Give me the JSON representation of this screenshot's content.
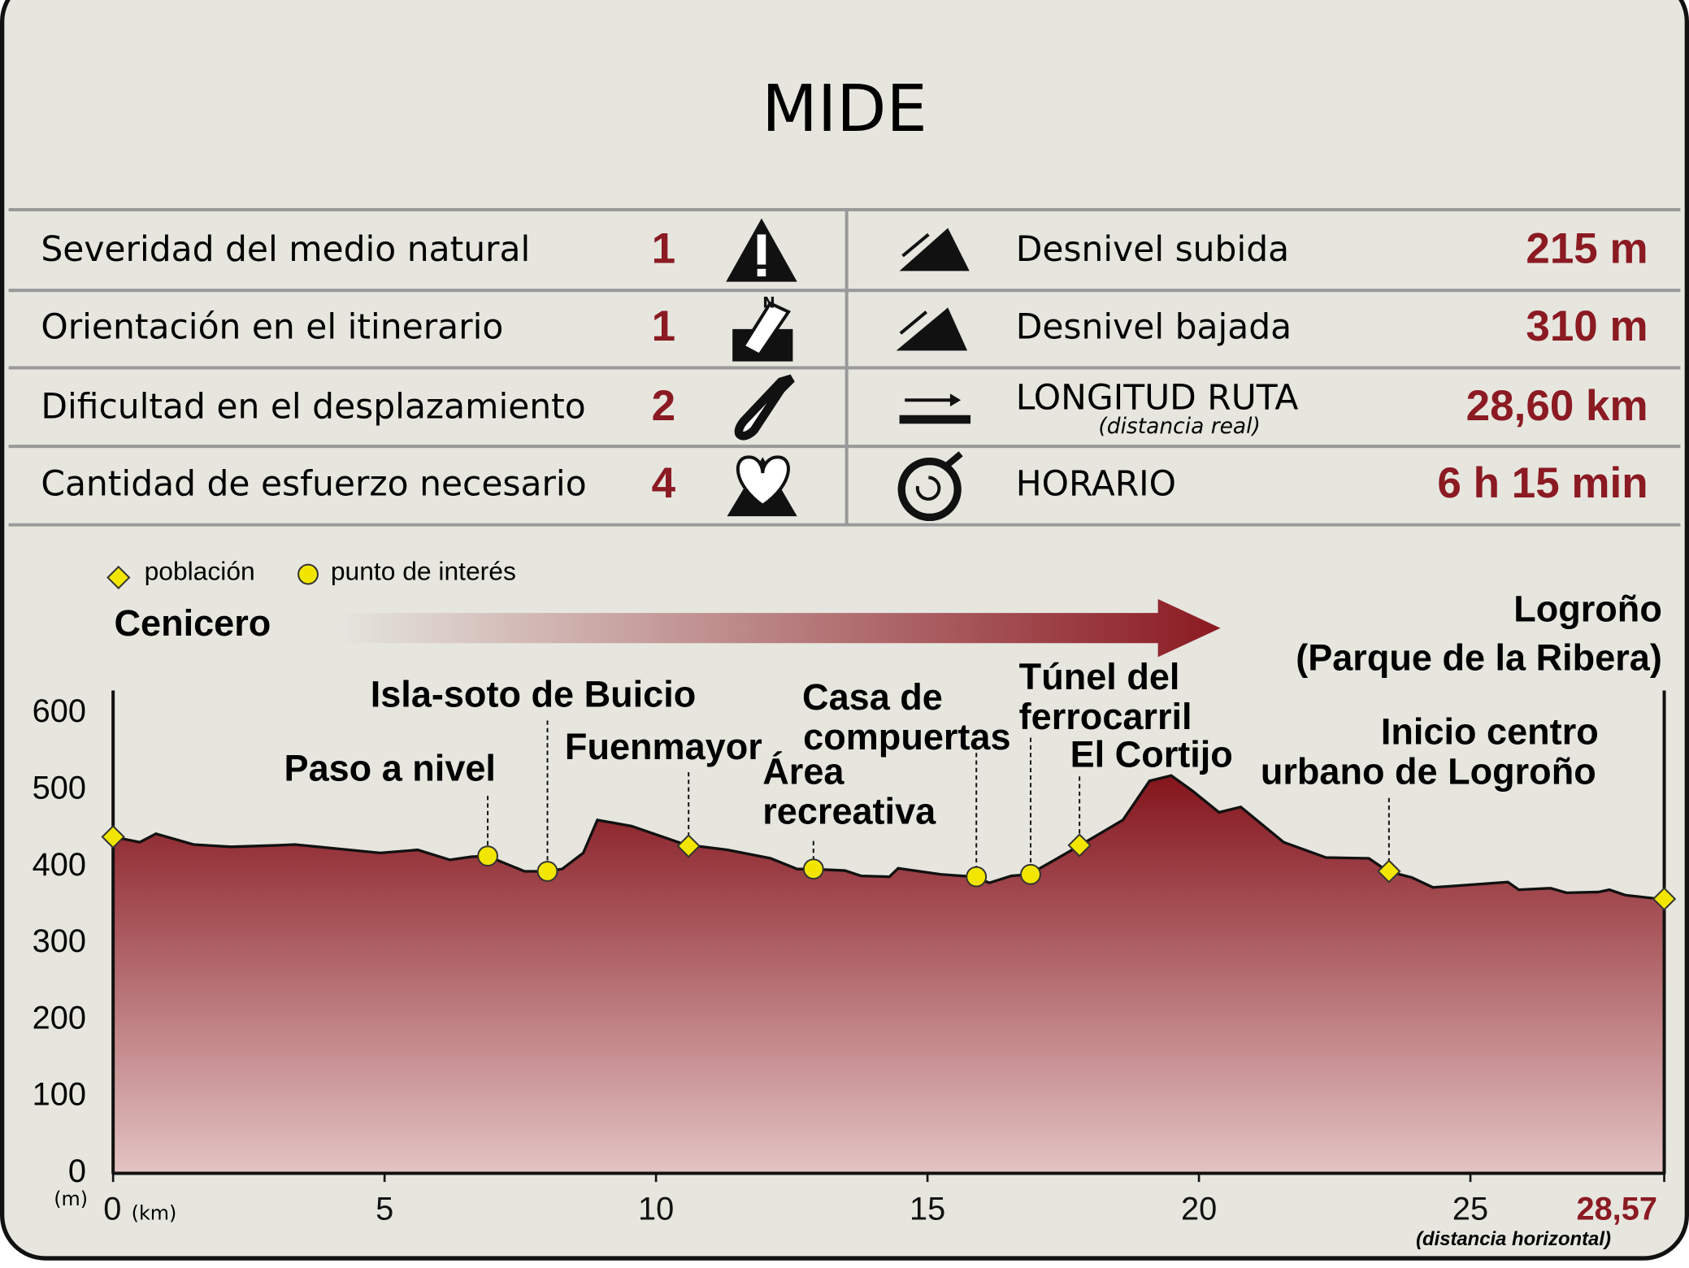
{
  "title": "MIDE",
  "mide": {
    "left": [
      {
        "label": "Severidad del medio natural",
        "value": 1
      },
      {
        "label": "Orientación en el itinerario",
        "value": 1
      },
      {
        "label": "Dificultad en el desplazamiento",
        "value": 2
      },
      {
        "label": "Cantidad de esfuerzo necesario",
        "value": 4
      }
    ],
    "right": [
      {
        "label": "Desnivel subida",
        "value": "215 m"
      },
      {
        "label": "Desnivel bajada",
        "value": "310 m"
      },
      {
        "label": "LONGITUD RUTA",
        "note": "(distancia real)",
        "value": "28,60 km"
      },
      {
        "label": "HORARIO",
        "value": "6 h 15 min"
      }
    ]
  },
  "chart_data": {
    "type": "area",
    "start": "Cenicero",
    "end": [
      "Logroño",
      "(Parque de la Ribera)"
    ],
    "x_unit": "(km)",
    "y_unit": "(m)",
    "x_note": "(distancia horizontal)",
    "xlim": [
      0,
      28.57
    ],
    "ylim": [
      0,
      630
    ],
    "xticks": [
      0,
      5,
      10,
      15,
      20,
      25,
      {
        "value": 28.57,
        "label": "28,57"
      }
    ],
    "yticks": [
      0,
      100,
      200,
      300,
      400,
      500,
      600
    ],
    "series": [
      {
        "color": "#8b1a22",
        "x": [
          0,
          0.49,
          0.79,
          1.48,
          2.17,
          3.05,
          3.35,
          4.92,
          5.61,
          6.2,
          6.6,
          6.89,
          7.58,
          7.97,
          8.27,
          8.66,
          8.92,
          9.55,
          10.53,
          11.32,
          12.11,
          12.6,
          12.89,
          13.48,
          13.78,
          14.3,
          14.46,
          15.25,
          15.85,
          16.14,
          16.54,
          16.87,
          17.32,
          17.81,
          18.6,
          19.09,
          19.49,
          19.88,
          20.37,
          20.77,
          21.56,
          22.34,
          23.13,
          23.48,
          23.92,
          24.31,
          25.69,
          25.89,
          26.48,
          26.77,
          27.36,
          27.56,
          27.85,
          28.35,
          28.57
        ],
        "values": [
          439,
          432,
          443,
          429,
          426,
          428,
          429,
          418,
          422,
          409,
          413,
          414,
          394,
          394,
          397,
          418,
          461,
          453,
          429,
          422,
          411,
          397,
          397,
          395,
          388,
          387,
          398,
          390,
          387,
          379,
          388,
          390,
          408,
          428,
          461,
          512,
          519,
          499,
          471,
          478,
          432,
          412,
          411,
          394,
          386,
          373,
          380,
          370,
          372,
          366,
          367,
          370,
          363,
          359,
          358
        ]
      },
      {
        "name": "población",
        "color": "#f2e600",
        "x": [
          0,
          10.6,
          17.8,
          23.5,
          28.57
        ],
        "values": [
          439,
          427,
          428,
          394,
          358
        ],
        "labels": [
          null,
          [
            "Fuenmayor"
          ],
          [
            "El Cortijo"
          ],
          [
            "Inicio centro",
            "urbano de Logroño"
          ],
          null
        ]
      },
      {
        "name": "punto de interés",
        "color": "#f2e600",
        "x": [
          6.9,
          8.0,
          12.9,
          15.9,
          16.9
        ],
        "values": [
          414,
          394,
          397,
          387,
          390
        ],
        "labels": [
          [
            "Paso a nivel"
          ],
          [
            "Isla-soto de Buicio"
          ],
          [
            "Área",
            "recreativa"
          ],
          [
            "Casa de",
            "compuertas"
          ],
          [
            "Túnel del",
            "ferrocarril"
          ]
        ]
      }
    ]
  }
}
